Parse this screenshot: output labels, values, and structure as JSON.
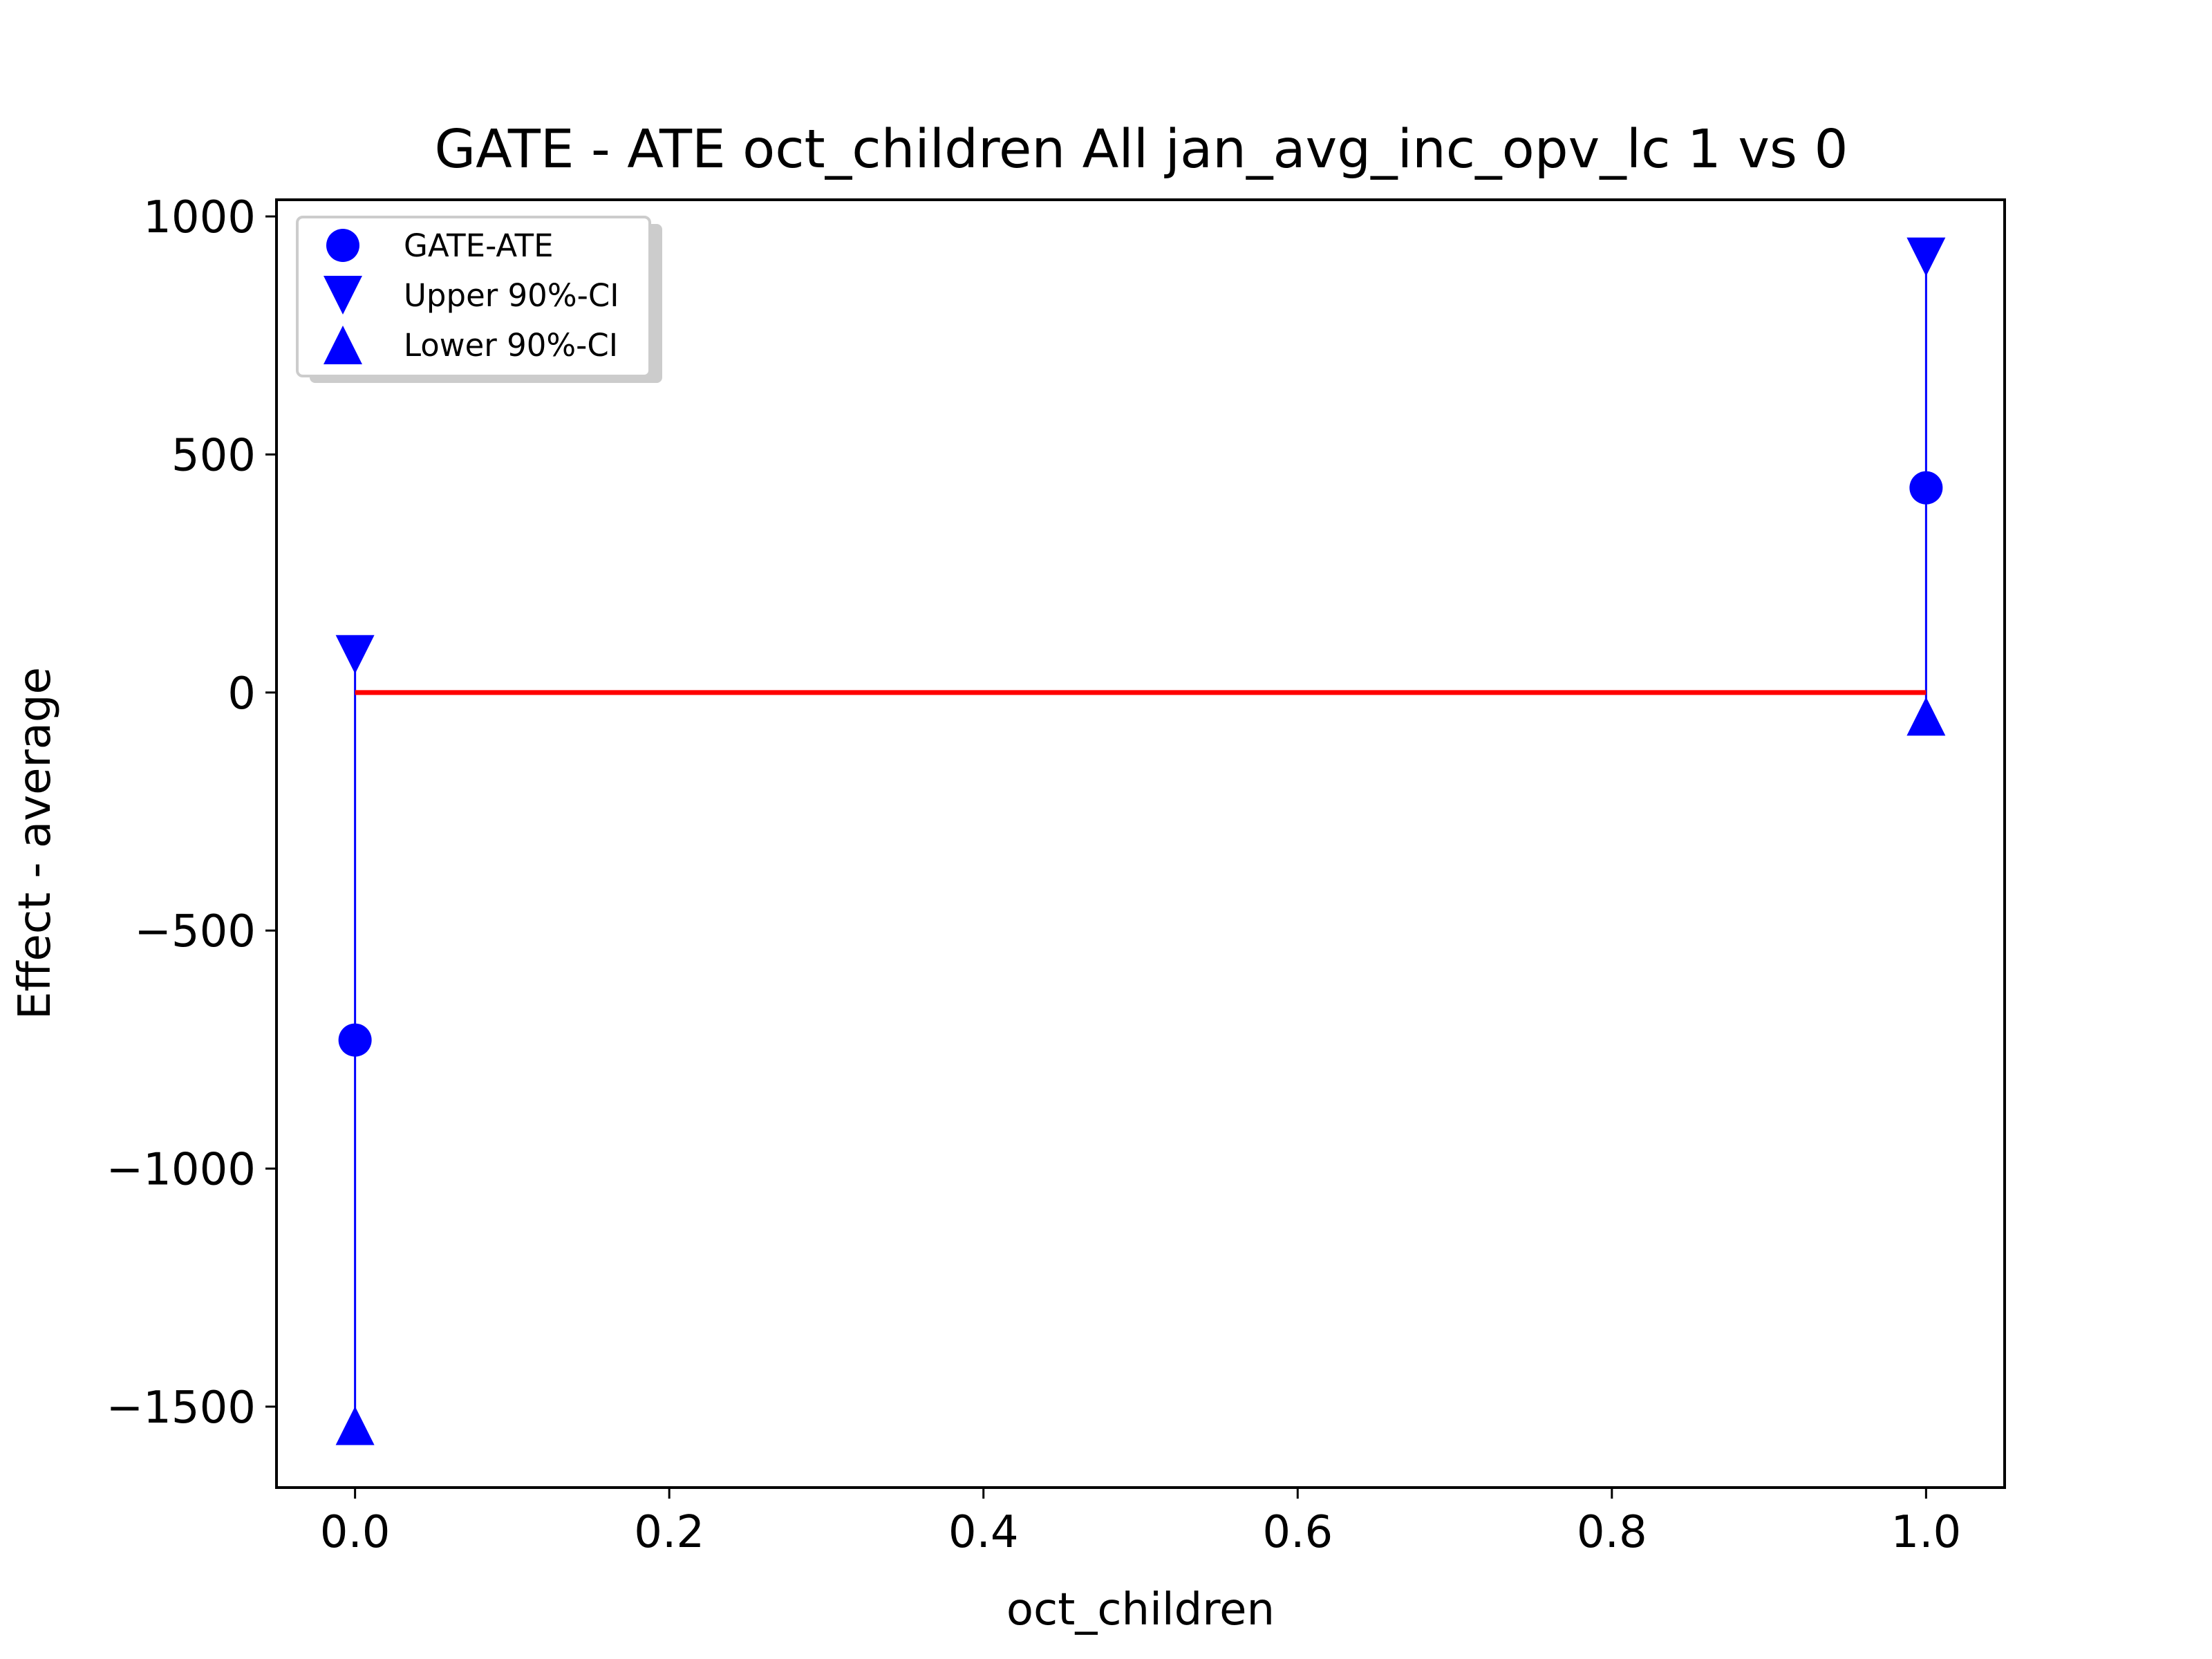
{
  "chart_data": {
    "type": "scatter",
    "title": "GATE - ATE oct_children All jan_avg_inc_opv_lc  1 vs 0",
    "xlabel": "oct_children",
    "ylabel": "Effect - average",
    "xlim": [
      -0.05,
      1.05
    ],
    "ylim": [
      -1670,
      1035
    ],
    "x_ticks": [
      0.0,
      0.2,
      0.4,
      0.6,
      0.8,
      1.0
    ],
    "x_tick_labels": [
      "0.0",
      "0.2",
      "0.4",
      "0.6",
      "0.8",
      "1.0"
    ],
    "y_ticks": [
      1000,
      500,
      0,
      -500,
      -1000,
      -1500
    ],
    "y_tick_labels": [
      "1000",
      "500",
      "0",
      "−500",
      "−1000",
      "−1500"
    ],
    "grid": false,
    "legend_position": "upper-left",
    "x": [
      0.0,
      1.0
    ],
    "series": [
      {
        "name": "GATE-ATE",
        "marker": "circle",
        "color": "#0000ff",
        "values": [
          -730,
          430
        ]
      },
      {
        "name": "Upper 90%-CI",
        "marker": "triangle-down",
        "color": "#0000ff",
        "values": [
          80,
          915
        ]
      },
      {
        "name": "Lower 90%-CI",
        "marker": "triangle-up",
        "color": "#0000ff",
        "values": [
          -1540,
          -50
        ]
      }
    ],
    "reference_line": {
      "y": 0,
      "x_range": [
        0.0,
        1.0
      ],
      "color": "#ff0000"
    }
  }
}
